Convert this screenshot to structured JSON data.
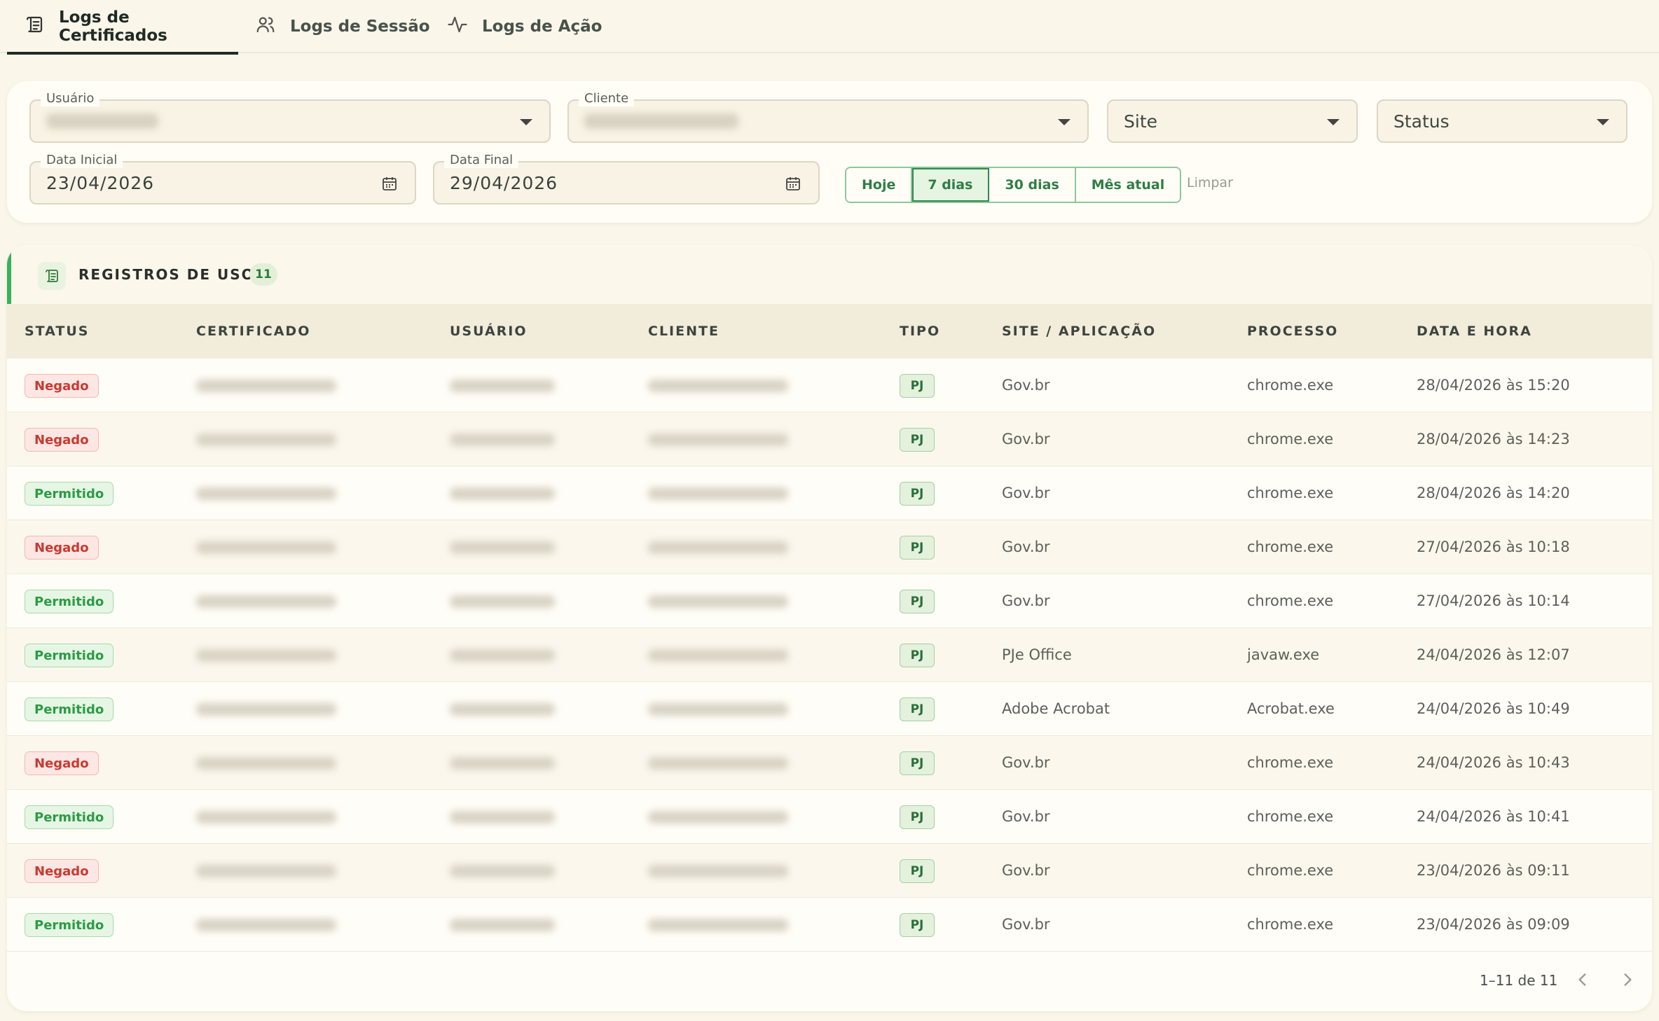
{
  "tabs": [
    {
      "label": "Logs de Certificados",
      "icon": "scroll-icon",
      "active": true
    },
    {
      "label": "Logs de Sessão",
      "icon": "users-icon",
      "active": false
    },
    {
      "label": "Logs de Ação",
      "icon": "activity-icon",
      "active": false
    }
  ],
  "filters": {
    "usuario_label": "Usuário",
    "cliente_label": "Cliente",
    "site_placeholder": "Site",
    "status_placeholder": "Status",
    "data_inicial_label": "Data Inicial",
    "data_inicial_value": "23/04/2026",
    "data_final_label": "Data Final",
    "data_final_value": "29/04/2026",
    "quick": [
      "Hoje",
      "7 dias",
      "30 dias",
      "Mês atual"
    ],
    "quick_selected": "7 dias",
    "clear_label": "Limpar"
  },
  "table": {
    "title": "REGISTROS DE USO",
    "count": "11",
    "columns": [
      "STATUS",
      "CERTIFICADO",
      "USUÁRIO",
      "CLIENTE",
      "TIPO",
      "SITE / APLICAÇÃO",
      "PROCESSO",
      "DATA E HORA"
    ],
    "rows": [
      {
        "status": "Negado",
        "tipo": "PJ",
        "site": "Gov.br",
        "processo": "chrome.exe",
        "data": "28/04/2026 às 15:20"
      },
      {
        "status": "Negado",
        "tipo": "PJ",
        "site": "Gov.br",
        "processo": "chrome.exe",
        "data": "28/04/2026 às 14:23"
      },
      {
        "status": "Permitido",
        "tipo": "PJ",
        "site": "Gov.br",
        "processo": "chrome.exe",
        "data": "28/04/2026 às 14:20"
      },
      {
        "status": "Negado",
        "tipo": "PJ",
        "site": "Gov.br",
        "processo": "chrome.exe",
        "data": "27/04/2026 às 10:18"
      },
      {
        "status": "Permitido",
        "tipo": "PJ",
        "site": "Gov.br",
        "processo": "chrome.exe",
        "data": "27/04/2026 às 10:14"
      },
      {
        "status": "Permitido",
        "tipo": "PJ",
        "site": "PJe Office",
        "processo": "javaw.exe",
        "data": "24/04/2026 às 12:07"
      },
      {
        "status": "Permitido",
        "tipo": "PJ",
        "site": "Adobe Acrobat",
        "processo": "Acrobat.exe",
        "data": "24/04/2026 às 10:49"
      },
      {
        "status": "Negado",
        "tipo": "PJ",
        "site": "Gov.br",
        "processo": "chrome.exe",
        "data": "24/04/2026 às 10:43"
      },
      {
        "status": "Permitido",
        "tipo": "PJ",
        "site": "Gov.br",
        "processo": "chrome.exe",
        "data": "24/04/2026 às 10:41"
      },
      {
        "status": "Negado",
        "tipo": "PJ",
        "site": "Gov.br",
        "processo": "chrome.exe",
        "data": "23/04/2026 às 09:11"
      },
      {
        "status": "Permitido",
        "tipo": "PJ",
        "site": "Gov.br",
        "processo": "chrome.exe",
        "data": "23/04/2026 às 09:09"
      }
    ]
  },
  "pagination": {
    "label": "1–11 de 11"
  },
  "colors": {
    "accent": "#37b25a",
    "denied": "#c83a30",
    "allowed": "#2c9b45",
    "background": "#faf6e9"
  }
}
